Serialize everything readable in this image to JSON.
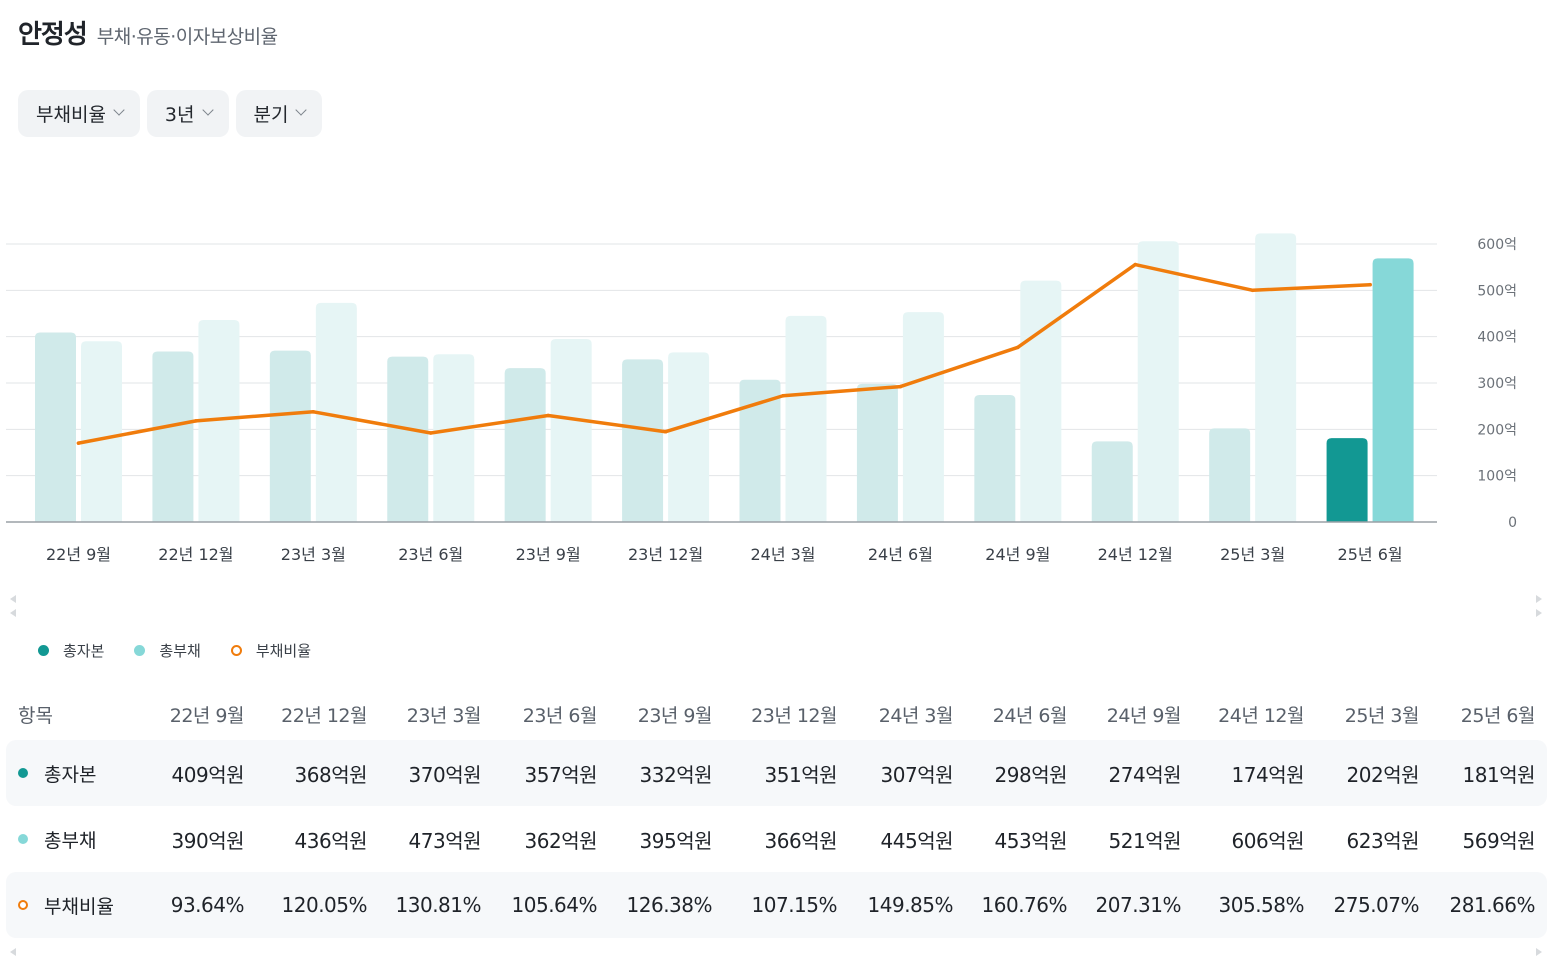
{
  "header": {
    "title": "안정성",
    "subtitle": "부채·유동·이자보상비율"
  },
  "filters": [
    {
      "label": "부채비율"
    },
    {
      "label": "3년"
    },
    {
      "label": "분기"
    }
  ],
  "colors": {
    "equity_past": "#d0eaea",
    "equity_current": "#129893",
    "debt_past": "#e6f5f5",
    "debt_current": "#86d8d8",
    "ratio_line": "#f07c0c",
    "grid": "#e2e4e7"
  },
  "chart_data": {
    "type": "bar+line",
    "categories": [
      "22년 9월",
      "22년 12월",
      "23년 3월",
      "23년 6월",
      "23년 9월",
      "23년 12월",
      "24년 3월",
      "24년 6월",
      "24년 9월",
      "24년 12월",
      "25년 3월",
      "25년 6월"
    ],
    "series": [
      {
        "name": "총자본",
        "type": "bar",
        "unit": "억원",
        "values": [
          409,
          368,
          370,
          357,
          332,
          351,
          307,
          298,
          274,
          174,
          202,
          181
        ]
      },
      {
        "name": "총부채",
        "type": "bar",
        "unit": "억원",
        "values": [
          390,
          436,
          473,
          362,
          395,
          366,
          445,
          453,
          521,
          606,
          623,
          569
        ]
      },
      {
        "name": "부채비율",
        "type": "line",
        "unit": "%",
        "values": [
          93.64,
          120.05,
          130.81,
          105.64,
          126.38,
          107.15,
          149.85,
          160.76,
          207.31,
          305.58,
          275.07,
          281.66
        ]
      }
    ],
    "y_axis": {
      "ticks": [
        "0",
        "100억",
        "200억",
        "300억",
        "400억",
        "500억",
        "600억"
      ],
      "tick_values": [
        0,
        100,
        200,
        300,
        400,
        500,
        600
      ],
      "range": [
        0,
        600
      ]
    },
    "line_axis_range": [
      0,
      330
    ],
    "legend_position": "bottom-left"
  },
  "legend": [
    {
      "label": "총자본"
    },
    {
      "label": "총부채"
    },
    {
      "label": "부채비율"
    }
  ],
  "table": {
    "header_label": "항목",
    "columns": [
      "22년 9월",
      "22년 12월",
      "23년 3월",
      "23년 6월",
      "23년 9월",
      "23년 12월",
      "24년 3월",
      "24년 6월",
      "24년 9월",
      "24년 12월",
      "25년 3월",
      "25년 6월"
    ],
    "rows": [
      {
        "label": "총자본",
        "values": [
          "409억원",
          "368억원",
          "370억원",
          "357억원",
          "332억원",
          "351억원",
          "307억원",
          "298억원",
          "274억원",
          "174억원",
          "202억원",
          "181억원"
        ]
      },
      {
        "label": "총부채",
        "values": [
          "390억원",
          "436억원",
          "473억원",
          "362억원",
          "395억원",
          "366억원",
          "445억원",
          "453억원",
          "521억원",
          "606억원",
          "623억원",
          "569억원"
        ]
      },
      {
        "label": "부채비율",
        "values": [
          "93.64%",
          "120.05%",
          "130.81%",
          "105.64%",
          "126.38%",
          "107.15%",
          "149.85%",
          "160.76%",
          "207.31%",
          "305.58%",
          "275.07%",
          "281.66%"
        ]
      }
    ]
  }
}
